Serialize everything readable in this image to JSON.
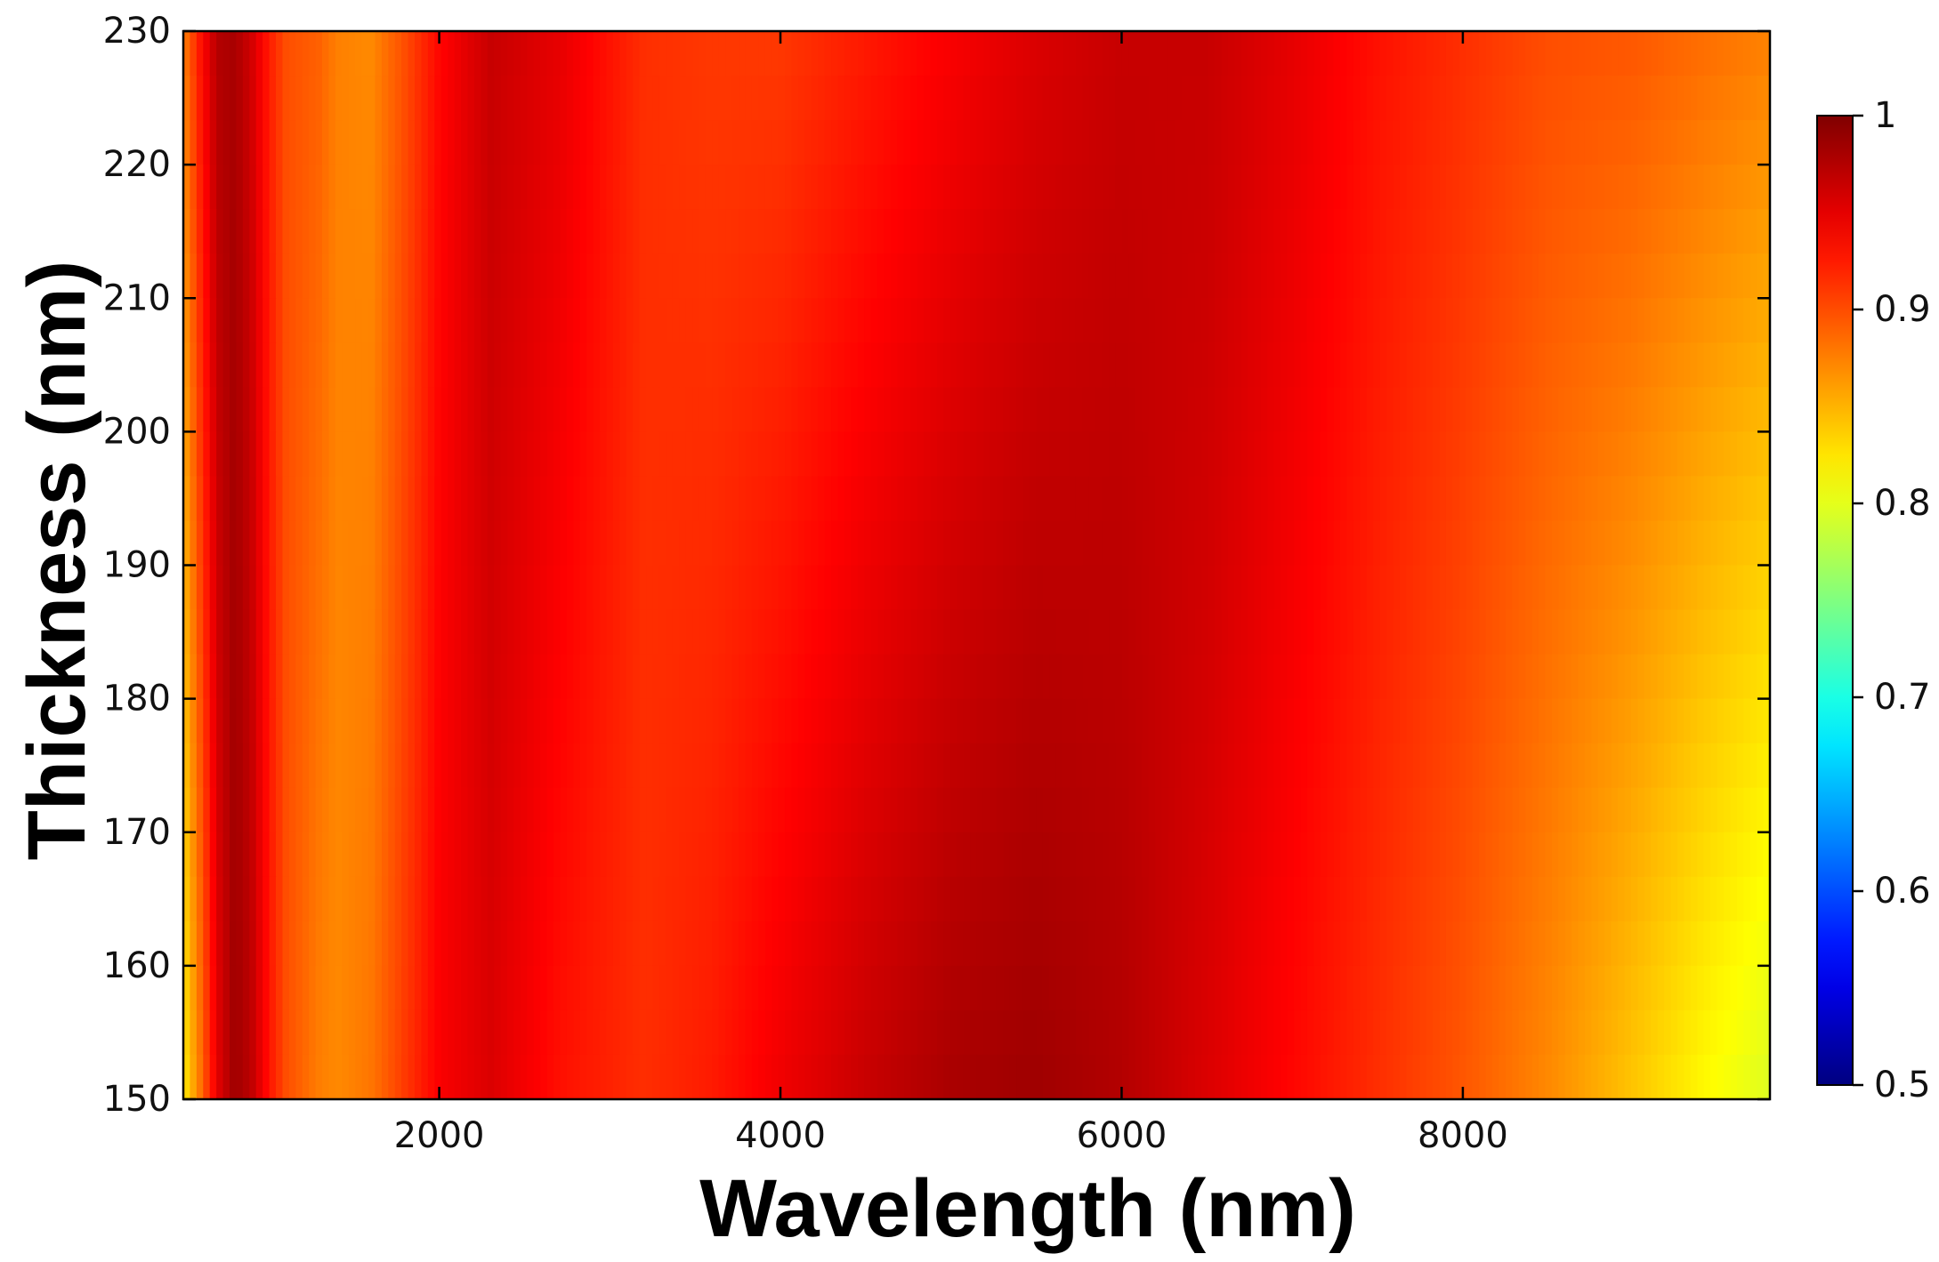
{
  "chart_data": {
    "type": "heatmap",
    "title": "",
    "xlabel": "Wavelength (nm)",
    "ylabel": "Thickness (nm)",
    "xlim": [
      500,
      9800
    ],
    "ylim": [
      150,
      230
    ],
    "x_ticks": [
      2000,
      4000,
      6000,
      8000
    ],
    "x_tick_labels": [
      "2000",
      "4000",
      "6000",
      "8000"
    ],
    "y_ticks": [
      150,
      160,
      170,
      180,
      190,
      200,
      210,
      220,
      230
    ],
    "y_tick_labels": [
      "150",
      "160",
      "170",
      "180",
      "190",
      "200",
      "210",
      "220",
      "230"
    ],
    "colorbar": {
      "range": [
        0.5,
        1
      ],
      "ticks": [
        0.5,
        0.6,
        0.7,
        0.8,
        0.9,
        1
      ],
      "tick_labels": [
        "0.5",
        "0.6",
        "0.7",
        "0.8",
        "0.9",
        "1"
      ],
      "colormap": "jet"
    },
    "grid": false,
    "wavelength_profile": {
      "x": [
        500,
        600,
        700,
        800,
        900,
        1000,
        1100,
        1300,
        1400,
        1600,
        1800,
        2000,
        2300,
        2700,
        3200,
        3600,
        4000,
        4500,
        5000,
        5500,
        6000,
        6500,
        7000,
        7500,
        8000,
        8500,
        9000,
        9400,
        9800
      ],
      "at_thickness_150": [
        0.82,
        0.88,
        0.95,
        0.985,
        0.97,
        0.93,
        0.9,
        0.875,
        0.87,
        0.88,
        0.91,
        0.94,
        0.955,
        0.93,
        0.915,
        0.925,
        0.945,
        0.965,
        0.98,
        0.985,
        0.975,
        0.955,
        0.935,
        0.915,
        0.895,
        0.87,
        0.84,
        0.815,
        0.795
      ],
      "at_thickness_230": [
        0.875,
        0.93,
        0.975,
        0.98,
        0.96,
        0.925,
        0.9,
        0.89,
        0.875,
        0.87,
        0.9,
        0.935,
        0.965,
        0.95,
        0.915,
        0.91,
        0.91,
        0.925,
        0.94,
        0.955,
        0.965,
        0.965,
        0.95,
        0.93,
        0.915,
        0.9,
        0.895,
        0.885,
        0.875
      ]
    }
  }
}
